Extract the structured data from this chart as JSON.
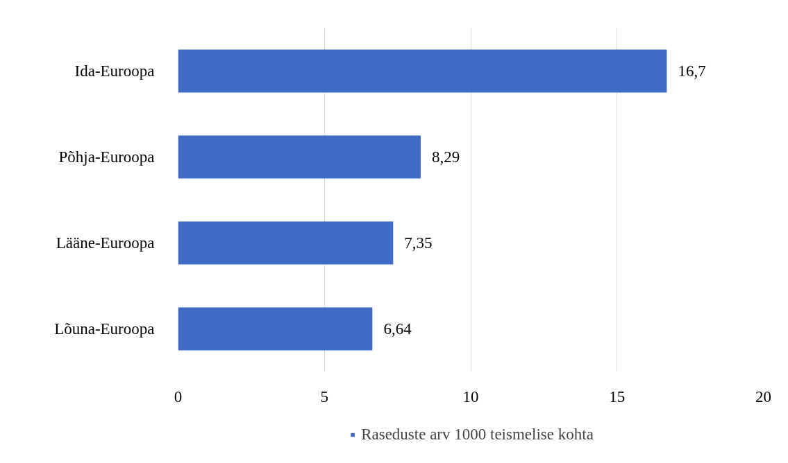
{
  "chart_data": {
    "type": "bar",
    "orientation": "horizontal",
    "categories": [
      "Ida-Euroopa",
      "Põhja-Euroopa",
      "Lääne-Euroopa",
      "Lõuna-Euroopa"
    ],
    "series": [
      {
        "name": "Raseduste arv 1000 teismelise kohta",
        "color": "#3f6cc4",
        "values": [
          16.7,
          8.29,
          7.35,
          6.64
        ],
        "value_labels": [
          "16,7",
          "8,29",
          "7,35",
          "6,64"
        ]
      }
    ],
    "xlim": [
      0,
      20
    ],
    "xticks": [
      0,
      5,
      10,
      15,
      20
    ],
    "grid": "x",
    "legend": "bottom"
  }
}
